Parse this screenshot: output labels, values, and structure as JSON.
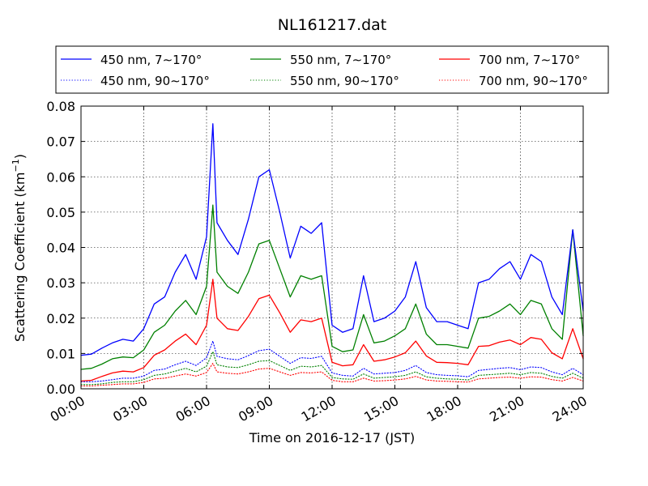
{
  "chart_data": {
    "type": "line",
    "title": "NL161217.dat",
    "xlabel": "Time on 2016-12-17 (JST)",
    "ylabel": "Scattering Coefficient (km",
    "ylabel_exponent": "−1",
    "ylabel_close": ")",
    "xlim_hours": [
      0,
      24
    ],
    "ylim": [
      0,
      0.08
    ],
    "x_ticks": [
      {
        "hour": 0,
        "label": "00:00"
      },
      {
        "hour": 3,
        "label": "03:00"
      },
      {
        "hour": 6,
        "label": "06:00"
      },
      {
        "hour": 9,
        "label": "09:00"
      },
      {
        "hour": 12,
        "label": "12:00"
      },
      {
        "hour": 15,
        "label": "15:00"
      },
      {
        "hour": 18,
        "label": "18:00"
      },
      {
        "hour": 21,
        "label": "21:00"
      },
      {
        "hour": 24,
        "label": "24:00"
      }
    ],
    "y_ticks": [
      {
        "value": 0.0,
        "label": "0.00"
      },
      {
        "value": 0.01,
        "label": "0.01"
      },
      {
        "value": 0.02,
        "label": "0.02"
      },
      {
        "value": 0.03,
        "label": "0.03"
      },
      {
        "value": 0.04,
        "label": "0.04"
      },
      {
        "value": 0.05,
        "label": "0.05"
      },
      {
        "value": 0.06,
        "label": "0.06"
      },
      {
        "value": 0.07,
        "label": "0.07"
      },
      {
        "value": 0.08,
        "label": "0.08"
      }
    ],
    "grid": true,
    "legend_placement": "above plot, 3 columns",
    "x_hours": [
      0.0,
      0.5,
      1.0,
      1.5,
      2.0,
      2.5,
      3.0,
      3.5,
      4.0,
      4.5,
      5.0,
      5.5,
      6.0,
      6.3,
      6.5,
      7.0,
      7.5,
      8.0,
      8.5,
      9.0,
      9.5,
      10.0,
      10.5,
      11.0,
      11.5,
      12.0,
      12.5,
      13.0,
      13.5,
      14.0,
      14.5,
      15.0,
      15.5,
      16.0,
      16.5,
      17.0,
      17.5,
      18.0,
      18.5,
      19.0,
      19.5,
      20.0,
      20.5,
      21.0,
      21.5,
      22.0,
      22.5,
      23.0,
      23.5,
      24.0
    ],
    "series": [
      {
        "name": "450 nm, 7∼170°",
        "color": "#0000ff",
        "style": "solid",
        "values": [
          0.0095,
          0.0098,
          0.0115,
          0.013,
          0.014,
          0.0135,
          0.017,
          0.024,
          0.026,
          0.033,
          0.038,
          0.031,
          0.043,
          0.075,
          0.047,
          0.042,
          0.038,
          0.048,
          0.06,
          0.062,
          0.05,
          0.037,
          0.046,
          0.044,
          0.047,
          0.018,
          0.016,
          0.017,
          0.032,
          0.019,
          0.02,
          0.022,
          0.026,
          0.036,
          0.023,
          0.019,
          0.019,
          0.018,
          0.017,
          0.03,
          0.031,
          0.034,
          0.036,
          0.031,
          0.038,
          0.036,
          0.026,
          0.021,
          0.045,
          0.022
        ]
      },
      {
        "name": "450 nm, 90∼170°",
        "color": "#0000ff",
        "style": "dotted",
        "values": [
          0.002,
          0.002,
          0.0022,
          0.0026,
          0.003,
          0.003,
          0.0036,
          0.0052,
          0.0056,
          0.0068,
          0.0078,
          0.0066,
          0.0088,
          0.0135,
          0.0092,
          0.0085,
          0.0082,
          0.0094,
          0.0108,
          0.0112,
          0.0092,
          0.0072,
          0.0088,
          0.0086,
          0.0092,
          0.0045,
          0.0038,
          0.0036,
          0.0058,
          0.0042,
          0.0044,
          0.0046,
          0.0052,
          0.0066,
          0.0046,
          0.004,
          0.0038,
          0.0037,
          0.0034,
          0.0052,
          0.0055,
          0.0058,
          0.006,
          0.0054,
          0.0062,
          0.006,
          0.0048,
          0.004,
          0.0058,
          0.004
        ]
      },
      {
        "name": "550 nm, 7∼170°",
        "color": "#008000",
        "style": "solid",
        "values": [
          0.0055,
          0.0058,
          0.007,
          0.0085,
          0.009,
          0.0088,
          0.011,
          0.016,
          0.018,
          0.022,
          0.025,
          0.021,
          0.029,
          0.052,
          0.033,
          0.029,
          0.027,
          0.033,
          0.041,
          0.042,
          0.034,
          0.026,
          0.032,
          0.031,
          0.032,
          0.012,
          0.0105,
          0.011,
          0.021,
          0.013,
          0.0135,
          0.015,
          0.017,
          0.024,
          0.0155,
          0.0125,
          0.0125,
          0.012,
          0.0115,
          0.02,
          0.0205,
          0.022,
          0.024,
          0.021,
          0.025,
          0.024,
          0.017,
          0.014,
          0.045,
          0.015
        ]
      },
      {
        "name": "550 nm, 90∼170°",
        "color": "#008000",
        "style": "dotted",
        "values": [
          0.0012,
          0.0012,
          0.0014,
          0.0018,
          0.002,
          0.002,
          0.0026,
          0.0038,
          0.0042,
          0.005,
          0.0058,
          0.0048,
          0.0064,
          0.0105,
          0.0068,
          0.0062,
          0.006,
          0.0068,
          0.0078,
          0.008,
          0.0066,
          0.0052,
          0.0064,
          0.0062,
          0.0066,
          0.0032,
          0.0028,
          0.0027,
          0.0042,
          0.003,
          0.0032,
          0.0034,
          0.0038,
          0.0048,
          0.0034,
          0.003,
          0.0028,
          0.0027,
          0.0025,
          0.0038,
          0.004,
          0.0042,
          0.0044,
          0.004,
          0.0046,
          0.0044,
          0.0035,
          0.003,
          0.0044,
          0.003
        ]
      },
      {
        "name": "700 nm, 7∼170°",
        "color": "#ff0000",
        "style": "solid",
        "values": [
          0.0022,
          0.0024,
          0.0035,
          0.0045,
          0.005,
          0.0048,
          0.006,
          0.0095,
          0.011,
          0.0135,
          0.0155,
          0.0125,
          0.018,
          0.031,
          0.02,
          0.017,
          0.0165,
          0.0205,
          0.0255,
          0.0265,
          0.0215,
          0.016,
          0.0195,
          0.019,
          0.02,
          0.0075,
          0.0065,
          0.0068,
          0.0125,
          0.0078,
          0.0082,
          0.009,
          0.0102,
          0.0135,
          0.0093,
          0.0075,
          0.0074,
          0.0072,
          0.0068,
          0.012,
          0.0122,
          0.0132,
          0.0138,
          0.0125,
          0.0145,
          0.014,
          0.0102,
          0.0085,
          0.017,
          0.0085
        ]
      },
      {
        "name": "700 nm, 90∼170°",
        "color": "#ff0000",
        "style": "dotted",
        "values": [
          0.0008,
          0.0008,
          0.001,
          0.0012,
          0.0014,
          0.0014,
          0.0018,
          0.0028,
          0.003,
          0.0036,
          0.0042,
          0.0036,
          0.0046,
          0.0072,
          0.0048,
          0.0044,
          0.0042,
          0.0048,
          0.0056,
          0.0058,
          0.0048,
          0.0038,
          0.0046,
          0.0045,
          0.0048,
          0.0024,
          0.002,
          0.002,
          0.003,
          0.0022,
          0.0023,
          0.0025,
          0.0028,
          0.0035,
          0.0025,
          0.0022,
          0.0021,
          0.002,
          0.0019,
          0.0028,
          0.003,
          0.0032,
          0.0033,
          0.003,
          0.0034,
          0.0033,
          0.0026,
          0.0022,
          0.0032,
          0.0022
        ]
      }
    ]
  }
}
